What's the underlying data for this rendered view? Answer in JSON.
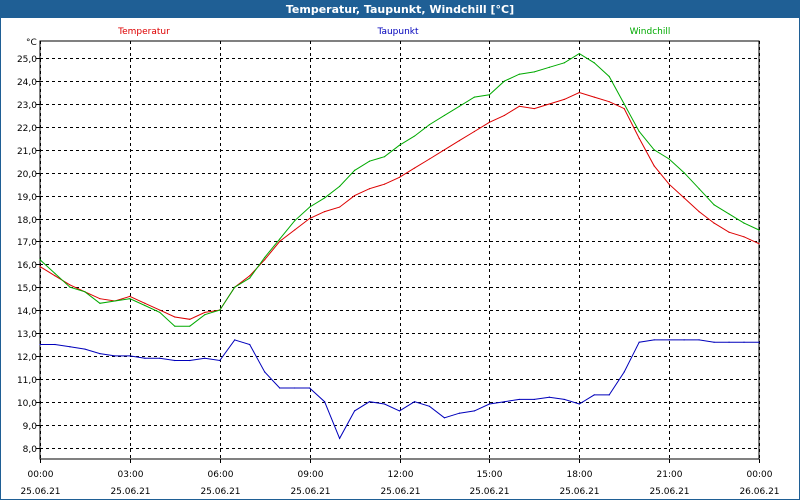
{
  "window": {
    "title": "Temperatur, Taupunkt, Windchill [°C]"
  },
  "chart_data": {
    "type": "line",
    "title": "Temperatur, Taupunkt, Windchill [°C]",
    "yunit": "°C",
    "ylim": [
      7.5,
      25.75
    ],
    "yticks": [
      "8,0",
      "9,0",
      "10,0",
      "11,0",
      "12,0",
      "13,0",
      "14,0",
      "15,0",
      "16,0",
      "17,0",
      "18,0",
      "19,0",
      "20,0",
      "21,0",
      "22,0",
      "23,0",
      "24,0",
      "25,0"
    ],
    "xlim": [
      0,
      24
    ],
    "xticks": [
      {
        "time": "00:00",
        "date": "25.06.21"
      },
      {
        "time": "03:00",
        "date": "25.06.21"
      },
      {
        "time": "06:00",
        "date": "25.06.21"
      },
      {
        "time": "09:00",
        "date": "25.06.21"
      },
      {
        "time": "12:00",
        "date": "25.06.21"
      },
      {
        "time": "15:00",
        "date": "25.06.21"
      },
      {
        "time": "18:00",
        "date": "25.06.21"
      },
      {
        "time": "21:00",
        "date": "25.06.21"
      },
      {
        "time": "00:00",
        "date": "26.06.21"
      }
    ],
    "grid": true,
    "legend_position": "top",
    "series": [
      {
        "name": "Temperatur",
        "color": "#dd0000",
        "x": [
          0,
          0.5,
          1,
          1.5,
          2,
          2.5,
          3,
          3.5,
          4,
          4.5,
          5,
          5.5,
          6,
          6.5,
          7,
          7.5,
          8,
          8.5,
          9,
          9.5,
          10,
          10.5,
          11,
          11.5,
          12,
          12.5,
          13,
          13.5,
          14,
          14.5,
          15,
          15.5,
          16,
          16.5,
          17,
          17.5,
          18,
          18.5,
          19,
          19.5,
          20,
          20.5,
          21,
          21.5,
          22,
          22.5,
          23,
          23.5,
          24
        ],
        "values": [
          15.9,
          15.5,
          15.1,
          14.8,
          14.5,
          14.4,
          14.6,
          14.3,
          14.0,
          13.7,
          13.6,
          13.9,
          14.0,
          15.0,
          15.5,
          16.2,
          17.0,
          17.5,
          18.0,
          18.3,
          18.5,
          19.0,
          19.3,
          19.5,
          19.8,
          20.2,
          20.6,
          21.0,
          21.4,
          21.8,
          22.2,
          22.5,
          22.9,
          22.8,
          23.0,
          23.2,
          23.5,
          23.3,
          23.1,
          22.8,
          21.5,
          20.3,
          19.5,
          18.9,
          18.3,
          17.8,
          17.4,
          17.2,
          16.9
        ]
      },
      {
        "name": "Taupunkt",
        "color": "#0000bb",
        "x": [
          0,
          0.5,
          1,
          1.5,
          2,
          2.5,
          3,
          3.5,
          4,
          4.5,
          5,
          5.5,
          6,
          6.5,
          7,
          7.5,
          8,
          8.5,
          9,
          9.5,
          10,
          10.5,
          11,
          11.5,
          12,
          12.5,
          13,
          13.5,
          14,
          14.5,
          15,
          15.5,
          16,
          16.5,
          17,
          17.5,
          18,
          18.5,
          19,
          19.5,
          20,
          20.5,
          21,
          21.5,
          22,
          22.5,
          23,
          23.5,
          24
        ],
        "values": [
          12.5,
          12.5,
          12.4,
          12.3,
          12.1,
          12.0,
          12.0,
          11.9,
          11.9,
          11.8,
          11.8,
          11.9,
          11.8,
          12.7,
          12.5,
          11.3,
          10.6,
          10.6,
          10.6,
          10.0,
          8.4,
          9.6,
          10.0,
          9.9,
          9.6,
          10.0,
          9.8,
          9.3,
          9.5,
          9.6,
          9.9,
          10.0,
          10.1,
          10.1,
          10.2,
          10.1,
          9.9,
          10.3,
          10.3,
          11.3,
          12.6,
          12.7,
          12.7,
          12.7,
          12.7,
          12.6,
          12.6,
          12.6,
          12.6
        ]
      },
      {
        "name": "Windchill",
        "color": "#00aa00",
        "x": [
          0,
          0.5,
          1,
          1.5,
          2,
          2.5,
          3,
          3.5,
          4,
          4.5,
          5,
          5.5,
          6,
          6.5,
          7,
          7.5,
          8,
          8.5,
          9,
          9.5,
          10,
          10.5,
          11,
          11.5,
          12,
          12.5,
          13,
          13.5,
          14,
          14.5,
          15,
          15.5,
          16,
          16.5,
          17,
          17.5,
          18,
          18.5,
          19,
          19.5,
          20,
          20.5,
          21,
          21.5,
          22,
          22.5,
          23,
          23.5,
          24
        ],
        "values": [
          16.2,
          15.6,
          15.0,
          14.8,
          14.3,
          14.4,
          14.5,
          14.2,
          13.9,
          13.3,
          13.3,
          13.8,
          14.0,
          15.0,
          15.4,
          16.3,
          17.1,
          17.9,
          18.5,
          18.9,
          19.4,
          20.1,
          20.5,
          20.7,
          21.2,
          21.6,
          22.1,
          22.5,
          22.9,
          23.3,
          23.4,
          24.0,
          24.3,
          24.4,
          24.6,
          24.8,
          25.2,
          24.8,
          24.2,
          23.0,
          21.8,
          21.0,
          20.6,
          20.0,
          19.3,
          18.6,
          18.2,
          17.8,
          17.5
        ]
      }
    ]
  }
}
